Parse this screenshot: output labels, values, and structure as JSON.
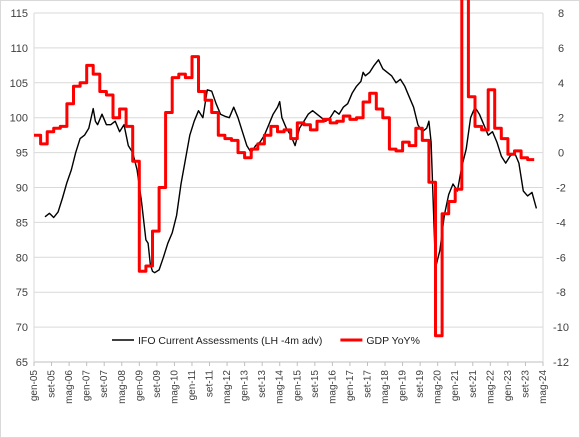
{
  "chart_data": {
    "type": "line",
    "title": "",
    "legend_position": "bottom-center",
    "grid": {
      "horizontal": true,
      "vertical": false
    },
    "x_axis": {
      "start": "2005-01",
      "end": "2024-05",
      "tick_labels": [
        "gen-05",
        "set-05",
        "mag-06",
        "gen-07",
        "set-07",
        "mag-08",
        "gen-09",
        "set-09",
        "mag-10",
        "gen-11",
        "set-11",
        "mag-12",
        "gen-13",
        "set-13",
        "mag-14",
        "gen-15",
        "set-15",
        "mag-16",
        "gen-17",
        "set-17",
        "mag-18",
        "gen-19",
        "set-19",
        "mag-20",
        "gen-21",
        "set-21",
        "mag-22",
        "gen-23",
        "set-23",
        "mag-24"
      ],
      "tick_positions": [
        "2005-01",
        "2005-09",
        "2006-05",
        "2007-01",
        "2007-09",
        "2008-05",
        "2009-01",
        "2009-09",
        "2010-05",
        "2011-01",
        "2011-09",
        "2012-05",
        "2013-01",
        "2013-09",
        "2014-05",
        "2015-01",
        "2015-09",
        "2016-05",
        "2017-01",
        "2017-09",
        "2018-05",
        "2019-01",
        "2019-09",
        "2020-05",
        "2021-01",
        "2021-09",
        "2022-05",
        "2023-01",
        "2023-09",
        "2024-05"
      ]
    },
    "y_left": {
      "min": 65,
      "max": 115,
      "step": 5,
      "ticks": [
        "65",
        "70",
        "75",
        "80",
        "85",
        "90",
        "95",
        "100",
        "105",
        "110",
        "115"
      ]
    },
    "y_right": {
      "min": -12,
      "max": 8,
      "step": 2,
      "ticks": [
        "-12",
        "-10",
        "-8",
        "-6",
        "-4",
        "-2",
        "0",
        "2",
        "4",
        "6",
        "8"
      ]
    },
    "series": [
      {
        "name": "IFO Current Assessments (LH -4m adv)",
        "axis": "left",
        "color": "#000000",
        "points": [
          [
            "2005-06",
            85.8
          ],
          [
            "2005-08",
            86.3
          ],
          [
            "2005-10",
            85.7
          ],
          [
            "2005-12",
            86.5
          ],
          [
            "2006-02",
            88.5
          ],
          [
            "2006-04",
            90.7
          ],
          [
            "2006-06",
            92.5
          ],
          [
            "2006-08",
            95.0
          ],
          [
            "2006-10",
            97.0
          ],
          [
            "2006-12",
            97.5
          ],
          [
            "2007-02",
            98.5
          ],
          [
            "2007-04",
            101.3
          ],
          [
            "2007-05",
            99.5
          ],
          [
            "2007-06",
            99.0
          ],
          [
            "2007-08",
            100.5
          ],
          [
            "2007-10",
            99.0
          ],
          [
            "2007-12",
            99.0
          ],
          [
            "2008-02",
            99.5
          ],
          [
            "2008-04",
            98.0
          ],
          [
            "2008-06",
            99.0
          ],
          [
            "2008-08",
            96.0
          ],
          [
            "2008-10",
            95.0
          ],
          [
            "2008-12",
            92.5
          ],
          [
            "2009-02",
            88.0
          ],
          [
            "2009-04",
            82.5
          ],
          [
            "2009-05",
            82.0
          ],
          [
            "2009-06",
            79.0
          ],
          [
            "2009-07",
            78.0
          ],
          [
            "2009-08",
            77.8
          ],
          [
            "2009-10",
            78.2
          ],
          [
            "2009-12",
            80.0
          ],
          [
            "2010-02",
            82.0
          ],
          [
            "2010-04",
            83.5
          ],
          [
            "2010-06",
            86.0
          ],
          [
            "2010-08",
            90.5
          ],
          [
            "2010-10",
            94.0
          ],
          [
            "2010-12",
            97.5
          ],
          [
            "2011-02",
            99.5
          ],
          [
            "2011-04",
            101.0
          ],
          [
            "2011-06",
            100.0
          ],
          [
            "2011-08",
            104.0
          ],
          [
            "2011-10",
            103.8
          ],
          [
            "2011-12",
            102.0
          ],
          [
            "2012-02",
            100.5
          ],
          [
            "2012-04",
            100.2
          ],
          [
            "2012-06",
            100.0
          ],
          [
            "2012-08",
            101.5
          ],
          [
            "2012-10",
            100.0
          ],
          [
            "2012-12",
            98.0
          ],
          [
            "2013-02",
            96.0
          ],
          [
            "2013-04",
            95.0
          ],
          [
            "2013-06",
            96.0
          ],
          [
            "2013-08",
            96.5
          ],
          [
            "2013-10",
            97.5
          ],
          [
            "2013-12",
            99.0
          ],
          [
            "2014-02",
            100.5
          ],
          [
            "2014-04",
            101.5
          ],
          [
            "2014-05",
            102.3
          ],
          [
            "2014-06",
            100.0
          ],
          [
            "2014-08",
            98.5
          ],
          [
            "2014-10",
            97.5
          ],
          [
            "2014-12",
            96.0
          ],
          [
            "2015-02",
            98.5
          ],
          [
            "2015-04",
            99.5
          ],
          [
            "2015-06",
            100.5
          ],
          [
            "2015-08",
            101.0
          ],
          [
            "2015-10",
            100.5
          ],
          [
            "2015-12",
            100.0
          ],
          [
            "2016-02",
            99.5
          ],
          [
            "2016-04",
            100.0
          ],
          [
            "2016-06",
            101.0
          ],
          [
            "2016-08",
            100.5
          ],
          [
            "2016-10",
            101.5
          ],
          [
            "2016-12",
            102.0
          ],
          [
            "2017-02",
            103.5
          ],
          [
            "2017-04",
            104.5
          ],
          [
            "2017-06",
            105.2
          ],
          [
            "2017-07",
            106.5
          ],
          [
            "2017-08",
            106.0
          ],
          [
            "2017-10",
            106.5
          ],
          [
            "2017-12",
            107.5
          ],
          [
            "2018-02",
            108.3
          ],
          [
            "2018-04",
            107.0
          ],
          [
            "2018-06",
            106.5
          ],
          [
            "2018-08",
            106.0
          ],
          [
            "2018-10",
            105.0
          ],
          [
            "2018-12",
            105.5
          ],
          [
            "2019-02",
            104.5
          ],
          [
            "2019-04",
            103.0
          ],
          [
            "2019-06",
            101.5
          ],
          [
            "2019-08",
            99.0
          ],
          [
            "2019-10",
            98.0
          ],
          [
            "2019-12",
            98.5
          ],
          [
            "2020-01",
            99.5
          ],
          [
            "2020-02",
            96.5
          ],
          [
            "2020-04",
            78.5
          ],
          [
            "2020-06",
            81.0
          ],
          [
            "2020-08",
            86.0
          ],
          [
            "2020-10",
            89.0
          ],
          [
            "2020-12",
            90.5
          ],
          [
            "2021-02",
            89.5
          ],
          [
            "2021-04",
            93.0
          ],
          [
            "2021-06",
            95.5
          ],
          [
            "2021-08",
            100.0
          ],
          [
            "2021-10",
            101.5
          ],
          [
            "2021-12",
            100.5
          ],
          [
            "2022-02",
            99.0
          ],
          [
            "2022-04",
            97.5
          ],
          [
            "2022-06",
            98.0
          ],
          [
            "2022-08",
            96.5
          ],
          [
            "2022-10",
            94.5
          ],
          [
            "2022-12",
            93.5
          ],
          [
            "2023-02",
            94.5
          ],
          [
            "2023-04",
            95.0
          ],
          [
            "2023-06",
            93.5
          ],
          [
            "2023-08",
            89.5
          ],
          [
            "2023-10",
            88.8
          ],
          [
            "2023-12",
            89.3
          ],
          [
            "2024-02",
            87.0
          ]
        ]
      },
      {
        "name": "GDP YoY%",
        "axis": "right",
        "color": "#ff0000",
        "points": [
          [
            "2005-01",
            1.0
          ],
          [
            "2005-04",
            0.5
          ],
          [
            "2005-07",
            1.2
          ],
          [
            "2005-10",
            1.4
          ],
          [
            "2006-01",
            1.5
          ],
          [
            "2006-04",
            2.8
          ],
          [
            "2006-07",
            3.8
          ],
          [
            "2006-10",
            4.0
          ],
          [
            "2007-01",
            5.0
          ],
          [
            "2007-04",
            4.5
          ],
          [
            "2007-07",
            3.5
          ],
          [
            "2007-10",
            3.3
          ],
          [
            "2008-01",
            2.0
          ],
          [
            "2008-04",
            2.5
          ],
          [
            "2008-07",
            1.5
          ],
          [
            "2008-10",
            -0.5
          ],
          [
            "2009-01",
            -6.8
          ],
          [
            "2009-04",
            -6.5
          ],
          [
            "2009-07",
            -4.5
          ],
          [
            "2009-10",
            -2.0
          ],
          [
            "2010-01",
            2.3
          ],
          [
            "2010-04",
            4.3
          ],
          [
            "2010-07",
            4.5
          ],
          [
            "2010-10",
            4.3
          ],
          [
            "2011-01",
            5.5
          ],
          [
            "2011-04",
            3.5
          ],
          [
            "2011-07",
            3.0
          ],
          [
            "2011-10",
            2.3
          ],
          [
            "2012-01",
            1.0
          ],
          [
            "2012-04",
            0.8
          ],
          [
            "2012-07",
            0.7
          ],
          [
            "2012-10",
            0.0
          ],
          [
            "2013-01",
            -0.3
          ],
          [
            "2013-04",
            0.2
          ],
          [
            "2013-07",
            0.5
          ],
          [
            "2013-10",
            1.0
          ],
          [
            "2014-01",
            1.5
          ],
          [
            "2014-04",
            1.2
          ],
          [
            "2014-07",
            1.3
          ],
          [
            "2014-10",
            0.8
          ],
          [
            "2015-01",
            1.7
          ],
          [
            "2015-04",
            1.6
          ],
          [
            "2015-07",
            1.3
          ],
          [
            "2015-10",
            1.8
          ],
          [
            "2016-01",
            1.9
          ],
          [
            "2016-04",
            1.7
          ],
          [
            "2016-07",
            1.8
          ],
          [
            "2016-10",
            2.1
          ],
          [
            "2017-01",
            1.9
          ],
          [
            "2017-04",
            2.0
          ],
          [
            "2017-07",
            2.9
          ],
          [
            "2017-10",
            3.4
          ],
          [
            "2018-01",
            2.5
          ],
          [
            "2018-04",
            2.0
          ],
          [
            "2018-07",
            0.2
          ],
          [
            "2018-10",
            0.1
          ],
          [
            "2019-01",
            0.6
          ],
          [
            "2019-04",
            0.4
          ],
          [
            "2019-07",
            1.4
          ],
          [
            "2019-10",
            0.7
          ],
          [
            "2020-01",
            -1.7
          ],
          [
            "2020-04",
            -10.5
          ],
          [
            "2020-07",
            -3.5
          ],
          [
            "2020-10",
            -2.8
          ],
          [
            "2021-01",
            -2.1
          ],
          [
            "2021-04",
            9.8
          ],
          [
            "2021-07",
            3.2
          ],
          [
            "2021-10",
            1.5
          ],
          [
            "2022-01",
            1.3
          ],
          [
            "2022-04",
            3.6
          ],
          [
            "2022-07",
            1.4
          ],
          [
            "2022-10",
            0.8
          ],
          [
            "2023-01",
            -0.1
          ],
          [
            "2023-04",
            0.1
          ],
          [
            "2023-07",
            -0.3
          ],
          [
            "2023-10",
            -0.4
          ],
          [
            "2024-01",
            -0.4
          ]
        ]
      }
    ]
  }
}
